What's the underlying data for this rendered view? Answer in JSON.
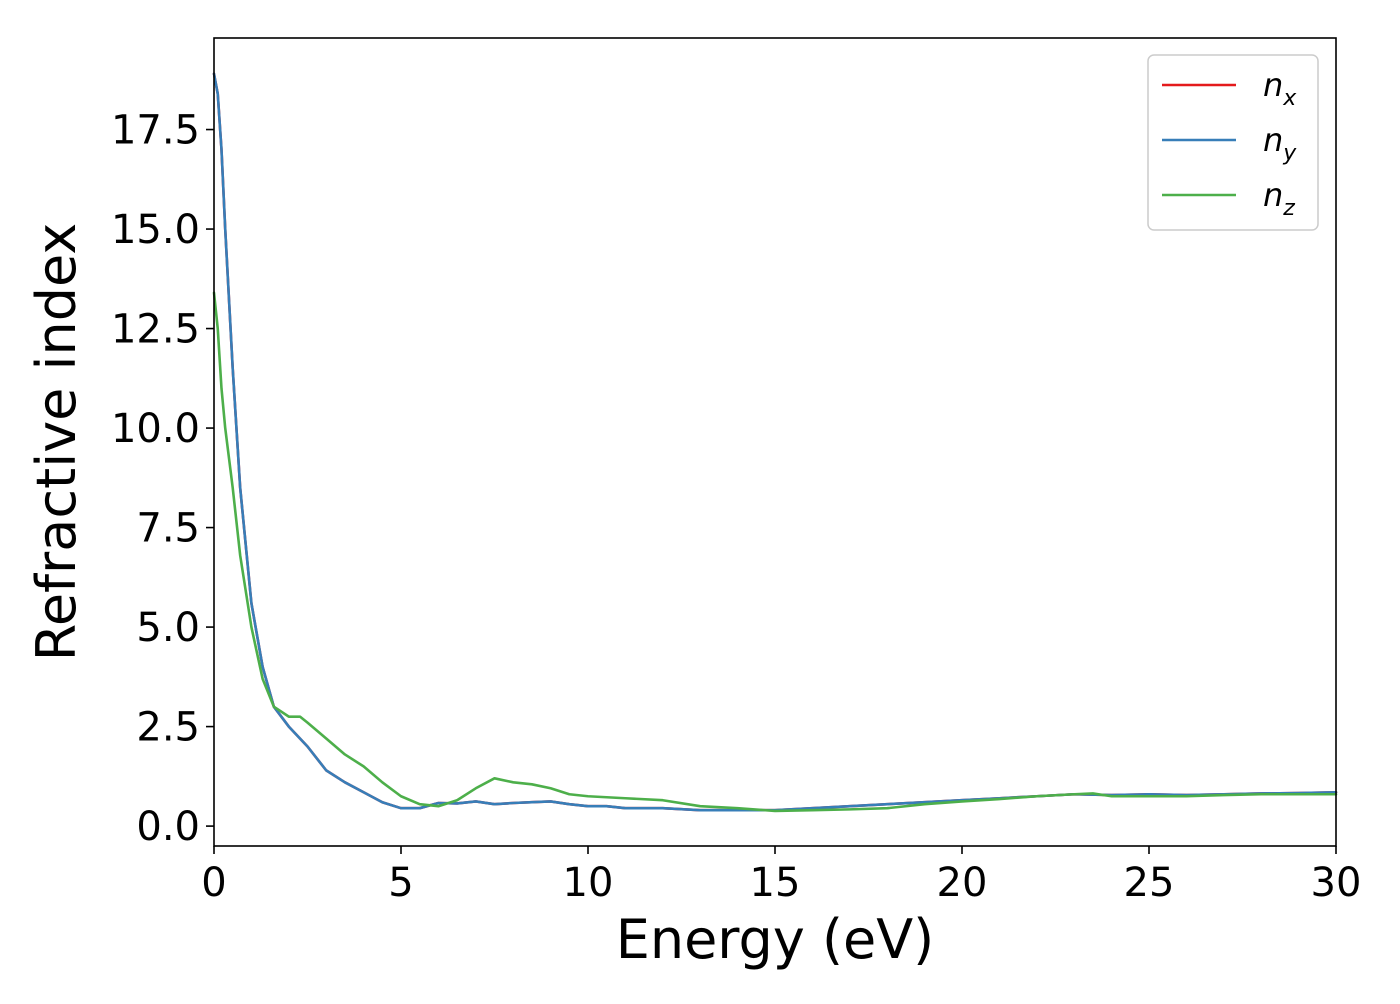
{
  "chart_data": {
    "type": "line",
    "title": "",
    "xlabel": "Energy (eV)",
    "ylabel": "Refractive index",
    "xlim": [
      0,
      30
    ],
    "ylim": [
      -0.5,
      19.8
    ],
    "xticks": [
      0,
      5,
      10,
      15,
      20,
      25,
      30
    ],
    "xtick_labels": [
      "0",
      "5",
      "10",
      "15",
      "20",
      "25",
      "30"
    ],
    "yticks": [
      0.0,
      2.5,
      5.0,
      7.5,
      10.0,
      12.5,
      15.0,
      17.5
    ],
    "ytick_labels": [
      "0.0",
      "2.5",
      "5.0",
      "7.5",
      "10.0",
      "12.5",
      "15.0",
      "17.5"
    ],
    "grid": false,
    "legend_position": "top-right",
    "series": [
      {
        "name": "n_x",
        "label_base": "n",
        "label_sub": "x",
        "color": "#e41a1c",
        "x": [
          0,
          0.1,
          0.2,
          0.3,
          0.5,
          0.7,
          1.0,
          1.3,
          1.6,
          2.0,
          2.5,
          3.0,
          3.5,
          4.0,
          4.5,
          5.0,
          5.5,
          6.0,
          6.5,
          7.0,
          7.5,
          8.0,
          8.5,
          9.0,
          9.5,
          10.0,
          10.5,
          11.0,
          11.5,
          12.0,
          13.0,
          14.0,
          15.0,
          16.0,
          17.0,
          18.0,
          19.0,
          20.0,
          21.0,
          22.0,
          23.0,
          24.0,
          25.0,
          26.0,
          27.0,
          28.0,
          29.0,
          30.0
        ],
        "y": [
          18.9,
          18.4,
          17.0,
          15.0,
          11.5,
          8.5,
          5.6,
          4.0,
          3.0,
          2.5,
          2.0,
          1.4,
          1.1,
          0.85,
          0.6,
          0.45,
          0.45,
          0.58,
          0.57,
          0.62,
          0.55,
          0.58,
          0.6,
          0.62,
          0.55,
          0.5,
          0.5,
          0.45,
          0.45,
          0.45,
          0.4,
          0.4,
          0.4,
          0.45,
          0.5,
          0.55,
          0.6,
          0.65,
          0.7,
          0.75,
          0.8,
          0.78,
          0.8,
          0.78,
          0.8,
          0.82,
          0.83,
          0.85
        ]
      },
      {
        "name": "n_y",
        "label_base": "n",
        "label_sub": "y",
        "color": "#377eb8",
        "x": [
          0,
          0.1,
          0.2,
          0.3,
          0.5,
          0.7,
          1.0,
          1.3,
          1.6,
          2.0,
          2.5,
          3.0,
          3.5,
          4.0,
          4.5,
          5.0,
          5.5,
          6.0,
          6.5,
          7.0,
          7.5,
          8.0,
          8.5,
          9.0,
          9.5,
          10.0,
          10.5,
          11.0,
          11.5,
          12.0,
          13.0,
          14.0,
          15.0,
          16.0,
          17.0,
          18.0,
          19.0,
          20.0,
          21.0,
          22.0,
          23.0,
          24.0,
          25.0,
          26.0,
          27.0,
          28.0,
          29.0,
          30.0
        ],
        "y": [
          18.9,
          18.4,
          17.0,
          15.0,
          11.5,
          8.5,
          5.6,
          4.0,
          3.0,
          2.5,
          2.0,
          1.4,
          1.1,
          0.85,
          0.6,
          0.45,
          0.45,
          0.58,
          0.57,
          0.62,
          0.55,
          0.58,
          0.6,
          0.62,
          0.55,
          0.5,
          0.5,
          0.45,
          0.45,
          0.45,
          0.4,
          0.4,
          0.4,
          0.45,
          0.5,
          0.55,
          0.6,
          0.65,
          0.7,
          0.75,
          0.8,
          0.78,
          0.8,
          0.78,
          0.8,
          0.82,
          0.83,
          0.85
        ]
      },
      {
        "name": "n_z",
        "label_base": "n",
        "label_sub": "z",
        "color": "#4daf4a",
        "x": [
          0,
          0.1,
          0.2,
          0.3,
          0.5,
          0.7,
          1.0,
          1.3,
          1.6,
          2.0,
          2.3,
          2.5,
          3.0,
          3.5,
          4.0,
          4.5,
          5.0,
          5.5,
          6.0,
          6.5,
          7.0,
          7.5,
          8.0,
          8.5,
          9.0,
          9.5,
          10.0,
          11.0,
          12.0,
          13.0,
          14.0,
          15.0,
          16.0,
          17.0,
          18.0,
          19.0,
          20.0,
          21.0,
          22.0,
          23.0,
          23.5,
          24.0,
          25.0,
          26.0,
          27.0,
          28.0,
          29.0,
          30.0
        ],
        "y": [
          13.4,
          12.5,
          11.0,
          10.0,
          8.5,
          6.8,
          5.0,
          3.7,
          3.0,
          2.75,
          2.75,
          2.6,
          2.2,
          1.8,
          1.5,
          1.1,
          0.75,
          0.55,
          0.5,
          0.65,
          0.95,
          1.2,
          1.1,
          1.05,
          0.95,
          0.8,
          0.75,
          0.7,
          0.65,
          0.5,
          0.45,
          0.38,
          0.4,
          0.42,
          0.45,
          0.55,
          0.62,
          0.68,
          0.75,
          0.8,
          0.82,
          0.75,
          0.75,
          0.75,
          0.78,
          0.8,
          0.8,
          0.8
        ]
      }
    ]
  }
}
